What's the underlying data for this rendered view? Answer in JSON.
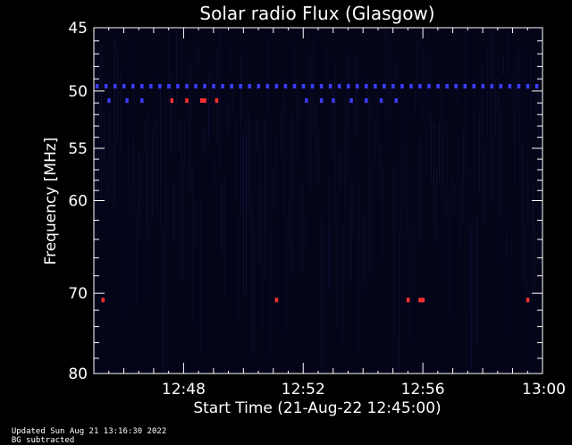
{
  "chart_data": {
    "type": "heatmap",
    "title": "Solar radio Flux (Glasgow)",
    "ylabel": "Frequency [MHz]",
    "xlabel": "Start Time (21-Aug-22 12:45:00)",
    "x_unit": "minutes after 12:45:00",
    "xlim": [
      0,
      15
    ],
    "ylim": [
      45,
      80
    ],
    "y_inverted": true,
    "y_scale": "log",
    "x_ticks": [
      {
        "value": 3,
        "label": "12:48"
      },
      {
        "value": 7,
        "label": "12:52"
      },
      {
        "value": 11,
        "label": "12:56"
      },
      {
        "value": 15,
        "label": "13:00"
      }
    ],
    "y_ticks": [
      {
        "value": 45,
        "label": "45"
      },
      {
        "value": 50,
        "label": "50"
      },
      {
        "value": 55,
        "label": "55"
      },
      {
        "value": 60,
        "label": "60"
      },
      {
        "value": 70,
        "label": "70"
      },
      {
        "value": 80,
        "label": "80"
      }
    ],
    "colors": {
      "background": "#000000",
      "field": "#05051a",
      "low": "#1a1aa0",
      "mid": "#3c3cff",
      "high": "#ff3030"
    },
    "bands": [
      {
        "freq": 49.6,
        "intensity": "mid",
        "times": [
          0.1,
          0.4,
          0.7,
          1.0,
          1.3,
          1.6,
          1.9,
          2.2,
          2.5,
          2.8,
          3.1,
          3.4,
          3.7,
          4.0,
          4.3,
          4.6,
          4.9,
          5.2,
          5.5,
          5.8,
          6.1,
          6.4,
          6.7,
          7.0,
          7.3,
          7.6,
          7.9,
          8.2,
          8.5,
          8.8,
          9.1,
          9.4,
          9.7,
          10.0,
          10.3,
          10.6,
          10.9,
          11.2,
          11.5,
          11.8,
          12.1,
          12.4,
          12.7,
          13.0,
          13.3,
          13.6,
          13.9,
          14.2,
          14.5,
          14.8
        ]
      },
      {
        "freq": 50.8,
        "intensity": "mid",
        "times": [
          0.5,
          1.1,
          1.6,
          2.6,
          7.1,
          7.6,
          8.0,
          8.6,
          9.1,
          9.6,
          10.1
        ]
      },
      {
        "freq": 50.8,
        "intensity": "high",
        "times": [
          2.6,
          3.1,
          3.6,
          3.7,
          4.1
        ]
      },
      {
        "freq": 70.8,
        "intensity": "high",
        "times": [
          0.3,
          6.1,
          10.5,
          10.9,
          11.0,
          14.5
        ]
      }
    ]
  },
  "footer": {
    "updated": "Updated Sun Aug 21 13:16:30 2022",
    "note": "BG subtracted"
  }
}
